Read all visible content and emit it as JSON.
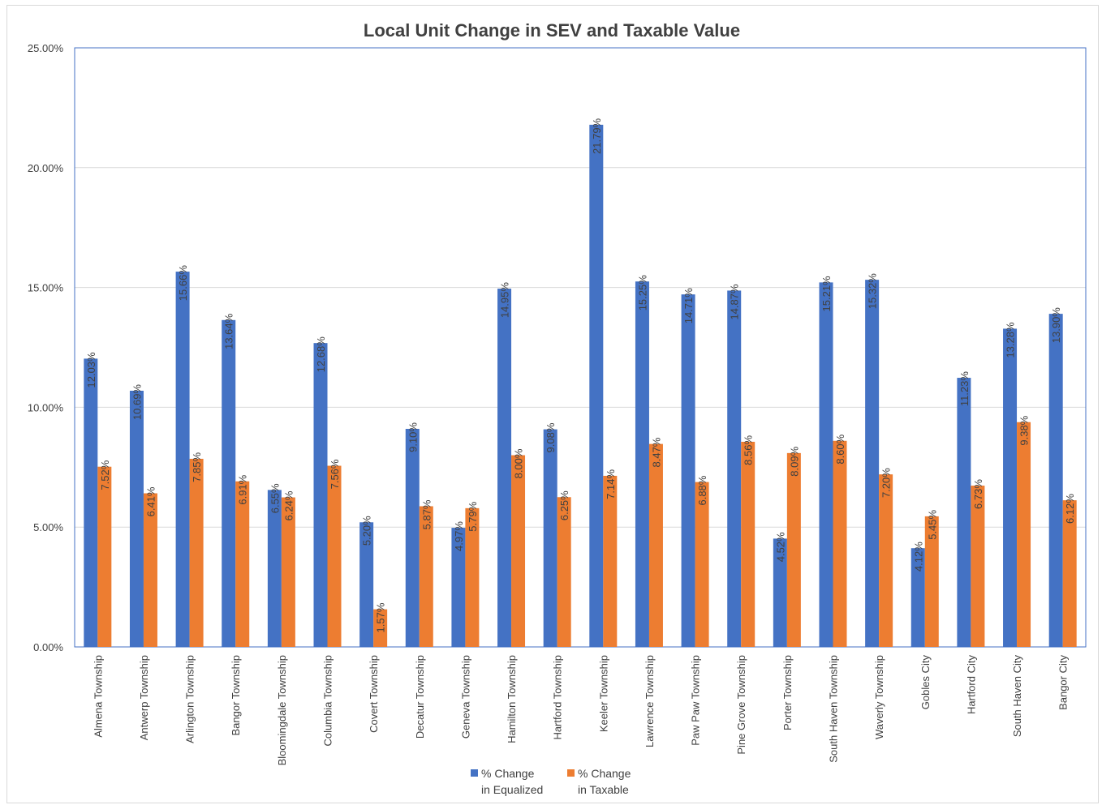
{
  "chart_data": {
    "type": "bar",
    "title": "Local Unit Change in SEV and Taxable Value",
    "xlabel": "",
    "ylabel": "",
    "ylim": [
      0,
      25
    ],
    "yticks": [
      "0.00%",
      "5.00%",
      "10.00%",
      "15.00%",
      "20.00%",
      "25.00%"
    ],
    "grid": true,
    "legend_position": "bottom",
    "categories": [
      "Almena Township",
      "Antwerp Township",
      "Arlington Township",
      "Bangor Township",
      "Bloomingdale Township",
      "Columbia Township",
      "Covert Township",
      "Decatur Township",
      "Geneva Township",
      "Hamilton Township",
      "Hartford Township",
      "Keeler Township",
      "Lawrence Township",
      "Paw Paw Township",
      "Pine Grove Township",
      "Porter Township",
      "South Haven Township",
      "Waverly Township",
      "Gobles City",
      "Hartford City",
      "South Haven City",
      "Bangor City"
    ],
    "series": [
      {
        "name": "% Change in Equalized",
        "legend_lines": [
          "% Change",
          "in Equalized"
        ],
        "color": "#4472c4",
        "values": [
          12.03,
          10.69,
          15.66,
          13.64,
          6.55,
          12.68,
          5.2,
          9.1,
          4.97,
          14.95,
          9.08,
          21.79,
          15.25,
          14.71,
          14.87,
          4.52,
          15.21,
          15.32,
          4.12,
          11.23,
          13.28,
          13.9
        ],
        "labels": [
          "12.03%",
          "10.69%",
          "15.66%",
          "13.64%",
          "6.55%",
          "12.68%",
          "5.20%",
          "9.10%",
          "4.97%",
          "14.95%",
          "9.08%",
          "21.79%",
          "15.25%",
          "14.71%",
          "14.87%",
          "4.52%",
          "15.21%",
          "15.32%",
          "4.12%",
          "11.23%",
          "13.28%",
          "13.90%"
        ]
      },
      {
        "name": "% Change in Taxable",
        "legend_lines": [
          "% Change",
          "in Taxable"
        ],
        "color": "#ed7d31",
        "values": [
          7.52,
          6.41,
          7.85,
          6.91,
          6.24,
          7.56,
          1.57,
          5.87,
          5.79,
          8.0,
          6.25,
          7.14,
          8.47,
          6.88,
          8.56,
          8.09,
          8.6,
          7.2,
          5.45,
          6.73,
          9.38,
          6.12
        ],
        "labels": [
          "7.52%",
          "6.41%",
          "7.85%",
          "6.91%",
          "6.24%",
          "7.56%",
          "1.57%",
          "5.87%",
          "5.79%",
          "8.00%",
          "6.25%",
          "7.14%",
          "8.47%",
          "6.88%",
          "8.56%",
          "8.09%",
          "8.60%",
          "7.20%",
          "5.45%",
          "6.73%",
          "9.38%",
          "6.12%"
        ]
      }
    ],
    "colors": {
      "plot_border": "#4472c4",
      "gridline": "#d9d9d9",
      "text": "#404040"
    }
  }
}
